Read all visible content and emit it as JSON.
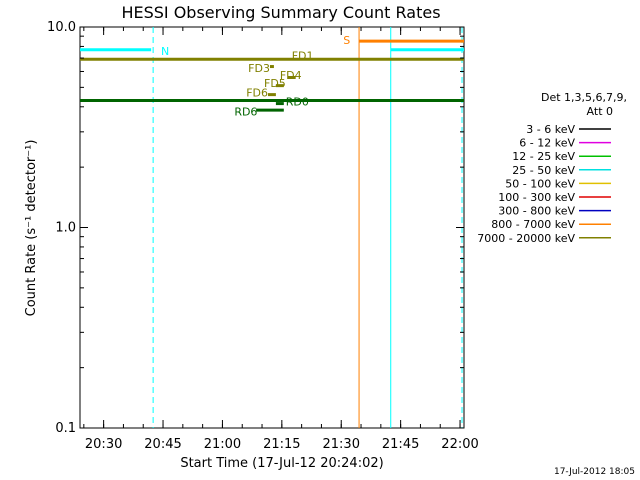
{
  "chart_data": {
    "type": "line",
    "title": "HESSI Observing Summary Count Rates",
    "xlabel": "Start Time (17-Jul-12 20:24:02)",
    "ylabel": "Count Rate (s⁻¹ detector⁻¹)",
    "xlim": [
      "20:24:02",
      "22:01:00"
    ],
    "ylim": [
      0.1,
      10.0
    ],
    "y_scale": "log",
    "x_ticks": [
      {
        "label": "20:30",
        "time": "20:30"
      },
      {
        "label": "20:45",
        "time": "20:45"
      },
      {
        "label": "21:00",
        "time": "21:00"
      },
      {
        "label": "21:15",
        "time": "21:15"
      },
      {
        "label": "21:30",
        "time": "21:30"
      },
      {
        "label": "21:45",
        "time": "21:45"
      },
      {
        "label": "22:00",
        "time": "22:00"
      }
    ],
    "y_ticks": [
      {
        "label": "10.0",
        "value": 10.0
      },
      {
        "label": "1.0",
        "value": 1.0
      },
      {
        "label": "0.1",
        "value": 0.1
      }
    ],
    "legend": {
      "position": "right",
      "title_lines": [
        "Det 1,3,5,6,7,9,",
        "Att 0"
      ],
      "entries": [
        {
          "label": "3 - 6 keV",
          "color": "#000000"
        },
        {
          "label": "6 - 12 keV",
          "color": "#e000e0"
        },
        {
          "label": "12 - 25 keV",
          "color": "#00c000"
        },
        {
          "label": "25 - 50 keV",
          "color": "#00e0e0"
        },
        {
          "label": "50 - 100 keV",
          "color": "#e0c000"
        },
        {
          "label": "100 - 300 keV",
          "color": "#e00000"
        },
        {
          "label": "300 - 800 keV",
          "color": "#0000c0"
        },
        {
          "label": "800 - 7000 keV",
          "color": "#ff8000"
        },
        {
          "label": "7000 - 20000 keV",
          "color": "#808000"
        }
      ]
    },
    "segments": [
      {
        "name": "FD1",
        "label": "FD1",
        "color": "#808000",
        "start": "20:24:02",
        "end": "22:01:00",
        "value": 6.9,
        "label_at": "21:17:30",
        "label_value": 7.2,
        "thick": true
      },
      {
        "name": "FD2",
        "label": "",
        "color": "#006400",
        "start": "20:24:02",
        "end": "22:01:00",
        "value": 4.3,
        "label_at": "",
        "label_value": 0,
        "thick": true
      },
      {
        "name": "S",
        "label": "S",
        "color": "#ff8000",
        "start": "21:34:30",
        "end": "22:01:00",
        "value": 8.5,
        "label_at": "21:30:30",
        "label_value": 8.6,
        "thick": true
      },
      {
        "name": "N-left",
        "label": "N",
        "color": "#00ffff",
        "start": "20:24:02",
        "end": "20:42:00",
        "value": 7.7,
        "label_at": "20:44:30",
        "label_value": 7.6,
        "thick": true
      },
      {
        "name": "N-right",
        "label": "",
        "color": "#00ffff",
        "start": "21:42:30",
        "end": "22:01:00",
        "value": 7.7,
        "label_at": "",
        "label_value": 0,
        "thick": true
      },
      {
        "name": "FD3",
        "label": "FD3",
        "color": "#808000",
        "start": "21:12:00",
        "end": "21:13:00",
        "value": 6.35,
        "label_at": "21:06:30",
        "label_value": 6.25,
        "thick": true
      },
      {
        "name": "FD4",
        "label": "FD4",
        "color": "#808000",
        "start": "21:16:30",
        "end": "21:18:30",
        "value": 5.6,
        "label_at": "21:14:30",
        "label_value": 5.75,
        "thick": true
      },
      {
        "name": "FD5",
        "label": "FD5",
        "color": "#808000",
        "start": "21:13:30",
        "end": "21:15:30",
        "value": 5.1,
        "label_at": "21:10:30",
        "label_value": 5.25,
        "thick": true
      },
      {
        "name": "FD6",
        "label": "FD6",
        "color": "#808000",
        "start": "21:11:30",
        "end": "21:13:30",
        "value": 4.6,
        "label_at": "21:06:00",
        "label_value": 4.7,
        "thick": true
      },
      {
        "name": "RD0",
        "label": "RD0",
        "color": "#006400",
        "start": "21:13:30",
        "end": "21:15:30",
        "value": 4.15,
        "label_at": "21:16:00",
        "label_value": 4.25,
        "thick": true
      },
      {
        "name": "RD6",
        "label": "RD6",
        "color": "#006400",
        "start": "21:08:30",
        "end": "21:15:30",
        "value": 3.85,
        "label_at": "21:03:00",
        "label_value": 3.8,
        "thick": true
      }
    ],
    "vertical_lines": [
      {
        "time": "20:42:30",
        "color": "#00ffff",
        "dash": true
      },
      {
        "time": "21:34:30",
        "color": "#ff8000",
        "dash": false
      },
      {
        "time": "21:42:30",
        "color": "#00ffff",
        "dash": false
      },
      {
        "time": "22:00:30",
        "color": "#00ffff",
        "dash": true
      }
    ],
    "footer_timestamp": "17-Jul-2012 18:05"
  }
}
